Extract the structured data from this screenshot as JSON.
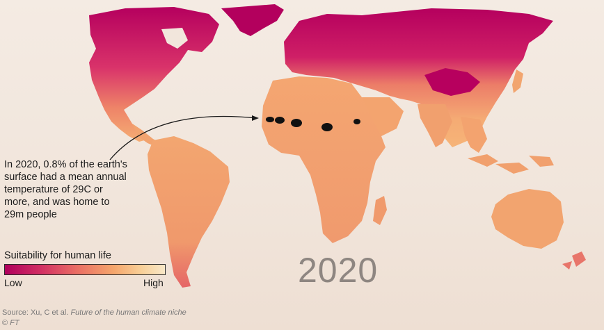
{
  "annotation": {
    "lines": [
      "In 2020, 0.8% of the earth's",
      "surface had a mean annual",
      "temperature of 29C or",
      "more, and was home to",
      "29m people"
    ]
  },
  "legend": {
    "title": "Suitability for human life",
    "low_label": "Low",
    "high_label": "High",
    "colors": [
      "#b0005c",
      "#d12e63",
      "#ea6e64",
      "#f5a66c",
      "#f8cf97",
      "#f8e8c8"
    ]
  },
  "year": "2020",
  "source": {
    "prefix": "Source: Xu, C et al. ",
    "title": "Future of the human climate niche",
    "copyright_symbol": "© ",
    "publisher": "FT"
  },
  "colors": {
    "low": "#b0005c",
    "mid_low": "#d9476a",
    "mid": "#ef8a68",
    "mid_high": "#f6b076",
    "high": "#f8cf97",
    "extreme_heat": "#111111",
    "background": "#f2e6dc"
  }
}
